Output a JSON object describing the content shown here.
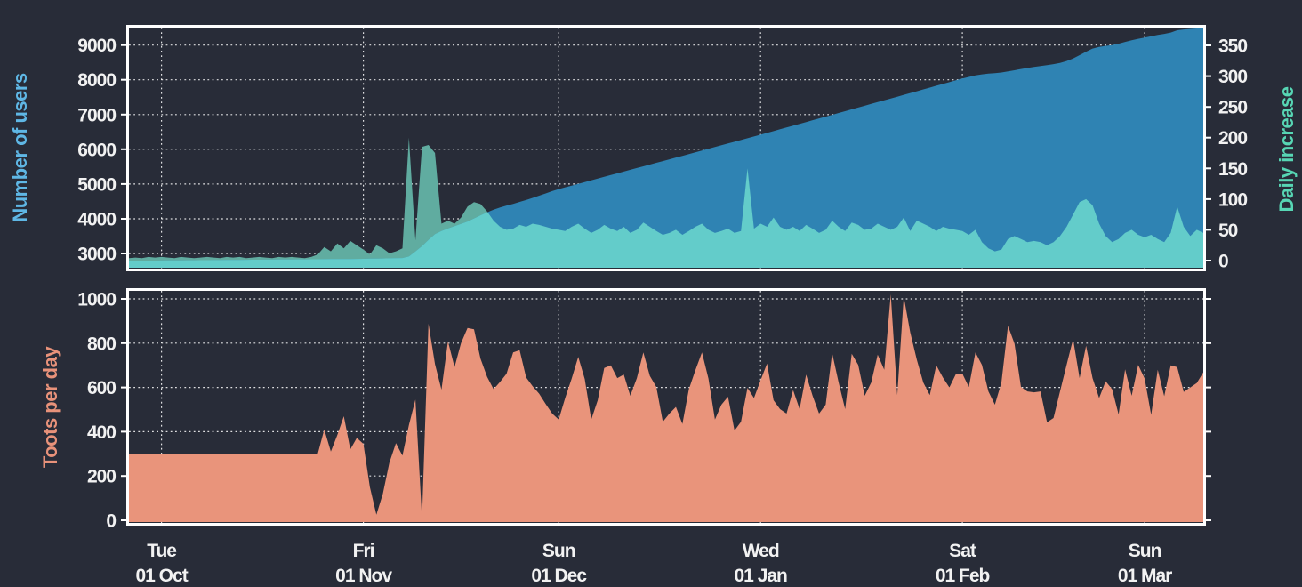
{
  "theme": {
    "background": "#282c38",
    "plot_border": "#ffffff",
    "gridline": "#ffffff",
    "tick_text": "#f2f2f2"
  },
  "x_axis": {
    "ticks": [
      {
        "day": 5,
        "weekday": "Tue",
        "date": "01 Oct"
      },
      {
        "day": 36,
        "weekday": "Fri",
        "date": "01 Nov"
      },
      {
        "day": 66,
        "weekday": "Sun",
        "date": "01 Dec"
      },
      {
        "day": 97,
        "weekday": "Wed",
        "date": "01 Jan"
      },
      {
        "day": 128,
        "weekday": "Sat",
        "date": "01 Feb"
      },
      {
        "day": 156,
        "weekday": "Sun",
        "date": "01 Mar"
      }
    ]
  },
  "chart_data": [
    {
      "id": "users-chart",
      "type": "area",
      "ylabel": "Number of users",
      "ylabel_color": "#5fb7e5",
      "y2label": "Daily increase",
      "y2label_color": "#57d6b4",
      "yticks": [
        3000,
        4000,
        5000,
        6000,
        7000,
        8000,
        9000
      ],
      "y2ticks": [
        0,
        50,
        100,
        150,
        200,
        250,
        300,
        350
      ],
      "ylim": [
        2566,
        9503
      ],
      "y2lim": [
        -13,
        379
      ],
      "grid": true,
      "legend_position": "none",
      "series": [
        {
          "name": "Number of users",
          "axis": "y1",
          "color": "#2f83b3",
          "values": [
            2790,
            2791,
            2793,
            2795,
            2797,
            2800,
            2801,
            2803,
            2804,
            2806,
            2807,
            2809,
            2810,
            2812,
            2813,
            2815,
            2816,
            2818,
            2819,
            2821,
            2822,
            2824,
            2825,
            2827,
            2828,
            2830,
            2831,
            2833,
            2834,
            2836,
            2837,
            2839,
            2840,
            2842,
            2843,
            2845,
            2848,
            2852,
            2855,
            2858,
            2862,
            2866,
            2870,
            2915,
            3060,
            3210,
            3390,
            3560,
            3650,
            3720,
            3790,
            3850,
            3920,
            4010,
            4100,
            4185,
            4260,
            4325,
            4380,
            4430,
            4485,
            4540,
            4600,
            4665,
            4730,
            4795,
            4855,
            4905,
            4955,
            5005,
            5056,
            5106,
            5157,
            5207,
            5258,
            5308,
            5359,
            5409,
            5460,
            5510,
            5561,
            5611,
            5662,
            5712,
            5763,
            5813,
            5864,
            5914,
            5965,
            6015,
            6066,
            6116,
            6167,
            6217,
            6268,
            6318,
            6369,
            6420,
            6472,
            6524,
            6576,
            6628,
            6680,
            6732,
            6785,
            6837,
            6889,
            6941,
            6993,
            7045,
            7098,
            7150,
            7202,
            7254,
            7306,
            7358,
            7411,
            7463,
            7515,
            7567,
            7619,
            7671,
            7724,
            7776,
            7828,
            7880,
            7932,
            7984,
            8037,
            8082,
            8127,
            8157,
            8177,
            8192,
            8210,
            8240,
            8275,
            8310,
            8340,
            8370,
            8398,
            8423,
            8450,
            8488,
            8540,
            8615,
            8710,
            8810,
            8900,
            8945,
            8975,
            8995,
            9040,
            9090,
            9140,
            9180,
            9215,
            9255,
            9290,
            9320,
            9360,
            9425,
            9450,
            9465,
            9480,
            9495
          ]
        },
        {
          "name": "Daily increase",
          "axis": "y2",
          "color_behind_users": "#60aca0",
          "color_over_users": "#63ccca",
          "values": [
            4,
            5,
            4,
            6,
            5,
            6,
            5,
            4,
            6,
            5,
            4,
            5,
            6,
            5,
            4,
            6,
            5,
            6,
            4,
            5,
            6,
            5,
            4,
            6,
            5,
            6,
            5,
            4,
            6,
            10,
            22,
            15,
            28,
            20,
            32,
            25,
            18,
            10,
            25,
            20,
            12,
            15,
            20,
            200,
            33,
            185,
            188,
            175,
            60,
            65,
            60,
            70,
            88,
            95,
            92,
            80,
            65,
            55,
            50,
            52,
            58,
            55,
            60,
            58,
            55,
            52,
            50,
            48,
            55,
            60,
            52,
            45,
            50,
            58,
            52,
            48,
            55,
            45,
            50,
            62,
            55,
            48,
            42,
            45,
            50,
            42,
            48,
            55,
            60,
            50,
            45,
            48,
            52,
            45,
            48,
            150,
            52,
            60,
            55,
            70,
            55,
            50,
            55,
            48,
            58,
            52,
            45,
            50,
            65,
            55,
            48,
            62,
            58,
            50,
            52,
            60,
            55,
            50,
            55,
            70,
            48,
            65,
            60,
            55,
            48,
            55,
            52,
            50,
            48,
            42,
            50,
            30,
            20,
            15,
            18,
            35,
            40,
            35,
            30,
            32,
            30,
            25,
            30,
            40,
            55,
            75,
            95,
            100,
            90,
            60,
            40,
            30,
            35,
            45,
            50,
            42,
            38,
            42,
            35,
            30,
            45,
            88,
            55,
            40,
            50,
            45
          ]
        }
      ]
    },
    {
      "id": "toots-chart",
      "type": "area",
      "ylabel": "Toots per day",
      "ylabel_color": "#e8927a",
      "yticks": [
        0,
        200,
        400,
        600,
        800,
        1000
      ],
      "ylim": [
        -12,
        1036
      ],
      "grid": true,
      "legend_position": "none",
      "series": [
        {
          "name": "Toots per day",
          "axis": "y1",
          "color": "#e9947b",
          "values": [
            300,
            300,
            300,
            300,
            300,
            300,
            300,
            300,
            300,
            300,
            300,
            300,
            300,
            300,
            300,
            300,
            300,
            300,
            300,
            300,
            300,
            300,
            300,
            300,
            300,
            300,
            300,
            300,
            300,
            300,
            410,
            310,
            385,
            470,
            320,
            372,
            345,
            150,
            25,
            120,
            260,
            348,
            292,
            430,
            545,
            8,
            888,
            705,
            590,
            808,
            692,
            800,
            868,
            862,
            730,
            648,
            592,
            625,
            662,
            758,
            768,
            645,
            605,
            572,
            525,
            482,
            455,
            552,
            640,
            738,
            638,
            455,
            542,
            688,
            700,
            642,
            658,
            562,
            642,
            758,
            652,
            602,
            445,
            482,
            512,
            435,
            592,
            678,
            758,
            640,
            455,
            522,
            558,
            405,
            445,
            598,
            552,
            632,
            708,
            542,
            502,
            482,
            588,
            502,
            658,
            562,
            482,
            522,
            755,
            622,
            502,
            752,
            702,
            562,
            622,
            748,
            680,
            1020,
            565,
            1010,
            848,
            725,
            622,
            565,
            700,
            645,
            600,
            660,
            662,
            602,
            758,
            702,
            582,
            522,
            622,
            878,
            798,
            602,
            582,
            578,
            582,
            442,
            462,
            582,
            702,
            818,
            642,
            788,
            642,
            552,
            628,
            592,
            478,
            682,
            562,
            702,
            640,
            476,
            680,
            560,
            700,
            692,
            580,
            600,
            620,
            668
          ]
        }
      ]
    }
  ]
}
